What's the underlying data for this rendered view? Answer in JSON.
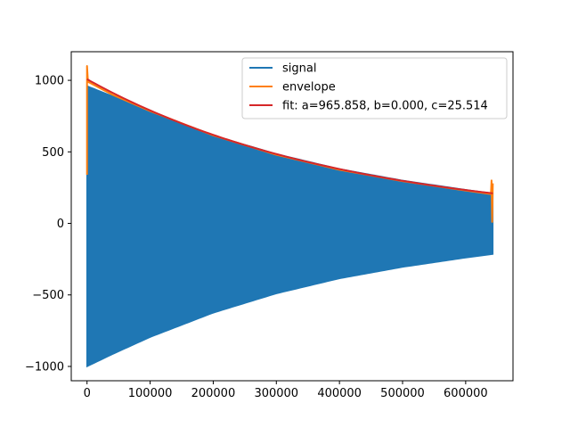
{
  "chart_data": {
    "type": "line",
    "title": "",
    "xlabel": "",
    "ylabel": "",
    "xlim": [
      -25000,
      675000
    ],
    "ylim": [
      -1100,
      1200
    ],
    "x_ticks": [
      0,
      100000,
      200000,
      300000,
      400000,
      500000,
      600000
    ],
    "x_tick_labels": [
      "0",
      "100000",
      "200000",
      "300000",
      "400000",
      "500000",
      "600000"
    ],
    "y_ticks": [
      -1000,
      -500,
      0,
      500,
      1000
    ],
    "y_tick_labels": [
      "−1000",
      "−500",
      "0",
      "500",
      "1000"
    ],
    "grid": false,
    "legend_position": "upper-right",
    "series": [
      {
        "name": "signal",
        "color": "#1f77b4",
        "kind": "oscillation-band",
        "x_range": [
          0,
          643000
        ],
        "upper": [
          [
            0,
            960
          ],
          [
            40000,
            890
          ],
          [
            100000,
            780
          ],
          [
            200000,
            615
          ],
          [
            300000,
            485
          ],
          [
            400000,
            380
          ],
          [
            500000,
            300
          ],
          [
            600000,
            235
          ],
          [
            643000,
            210
          ]
        ],
        "lower": [
          [
            0,
            -1000
          ],
          [
            40000,
            -915
          ],
          [
            100000,
            -795
          ],
          [
            200000,
            -625
          ],
          [
            300000,
            -490
          ],
          [
            400000,
            -385
          ],
          [
            500000,
            -305
          ],
          [
            600000,
            -240
          ],
          [
            643000,
            -215
          ]
        ]
      },
      {
        "name": "envelope",
        "color": "#ff7f0e",
        "points": [
          [
            0,
            340
          ],
          [
            0,
            1100
          ],
          [
            1500,
            990
          ],
          [
            40000,
            900
          ],
          [
            100000,
            785
          ],
          [
            200000,
            615
          ],
          [
            300000,
            480
          ],
          [
            400000,
            375
          ],
          [
            500000,
            295
          ],
          [
            600000,
            230
          ],
          [
            640000,
            205
          ],
          [
            641000,
            300
          ],
          [
            642000,
            10
          ],
          [
            643000,
            280
          ]
        ]
      },
      {
        "name": "fit: a=965.858, b=0.000, c=25.514",
        "color": "#d62728",
        "function": "exp-decay",
        "params": {
          "a_over_b": 1008,
          "tau": 410000
        },
        "x_range": [
          0,
          643000
        ]
      }
    ]
  }
}
